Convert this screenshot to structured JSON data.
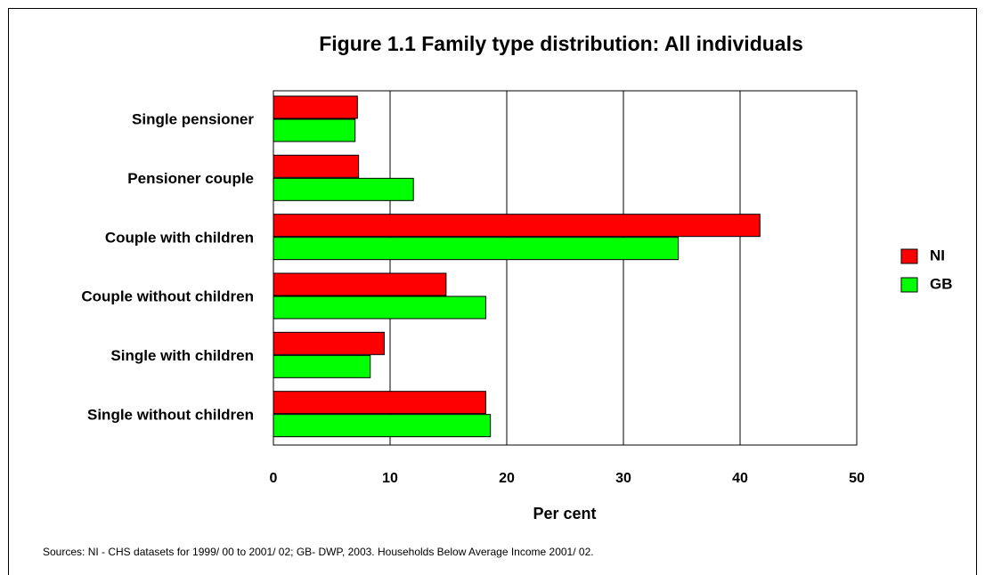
{
  "chart_data": {
    "type": "hbar",
    "title": "Figure 1.1 Family type distribution: All individuals",
    "categories": [
      "Single pensioner",
      "Pensioner couple",
      "Couple with children",
      "Couple without children",
      "Single with children",
      "Single without children"
    ],
    "series": [
      {
        "name": "NI",
        "color": "#ff0000",
        "values": [
          7.2,
          7.3,
          41.7,
          14.8,
          9.5,
          18.2
        ]
      },
      {
        "name": "GB",
        "color": "#00ff00",
        "values": [
          7.0,
          12.0,
          34.7,
          18.2,
          8.3,
          18.6
        ]
      }
    ],
    "xlim": [
      0,
      50
    ],
    "xticks": [
      0,
      10,
      20,
      30,
      40,
      50
    ],
    "xlabel": "Per cent",
    "grid": true,
    "legend": "right",
    "source": "Sources: NI - CHS datasets for 1999/ 00 to 2001/ 02; GB- DWP, 2003. Households Below Average Income 2001/ 02."
  }
}
